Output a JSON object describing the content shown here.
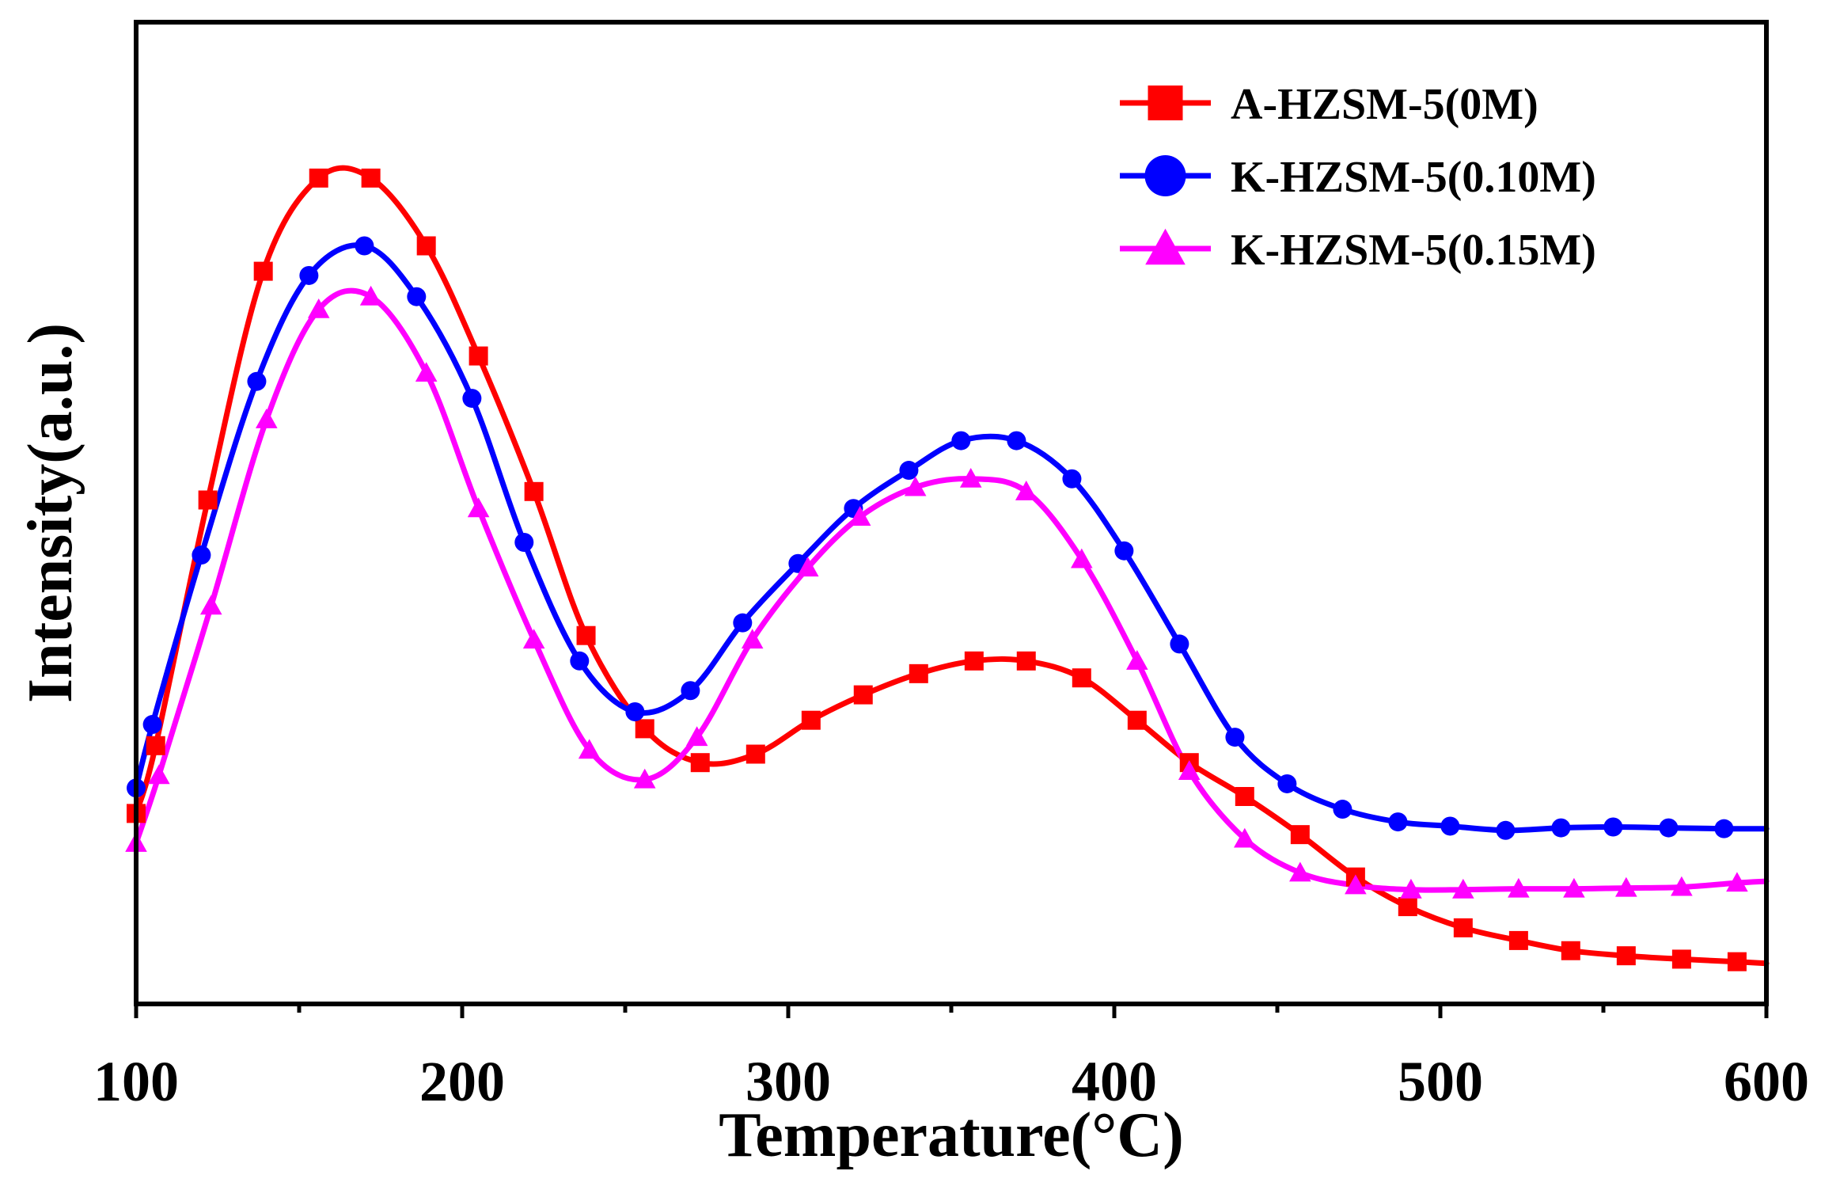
{
  "chart_data": {
    "type": "line",
    "title": "",
    "xlabel": "Temperature(°C)",
    "ylabel": "Intensity(a.u.)",
    "xlim": [
      100,
      600
    ],
    "ylim": [
      0,
      100
    ],
    "x_ticks": [
      "100",
      "200",
      "300",
      "400",
      "500",
      "600"
    ],
    "y_ticks_labeled": false,
    "grid": false,
    "legend_position": "top-right",
    "series": [
      {
        "name": "A-HZSM-5(0M)",
        "color": "#ff0000",
        "marker": "square",
        "points": [
          [
            100,
            18
          ],
          [
            106,
            26
          ],
          [
            122,
            55
          ],
          [
            139,
            82
          ],
          [
            156,
            93
          ],
          [
            172,
            93
          ],
          [
            189,
            85
          ],
          [
            205,
            72
          ],
          [
            222,
            56
          ],
          [
            238,
            39
          ],
          [
            256,
            28
          ],
          [
            273,
            24
          ],
          [
            290,
            25
          ],
          [
            307,
            29
          ],
          [
            323,
            32
          ],
          [
            340,
            34.5
          ],
          [
            357,
            36
          ],
          [
            373,
            36
          ],
          [
            390,
            34
          ],
          [
            407,
            29
          ],
          [
            423,
            24
          ],
          [
            440,
            20
          ],
          [
            457,
            15.5
          ],
          [
            474,
            10.5
          ],
          [
            490,
            7
          ],
          [
            507,
            4.5
          ],
          [
            524,
            3
          ],
          [
            540,
            1.8
          ],
          [
            557,
            1.2
          ],
          [
            574,
            0.8
          ],
          [
            591,
            0.5
          ],
          [
            600,
            0.3
          ]
        ],
        "marker_x": [
          100,
          106,
          122,
          139,
          156,
          172,
          189,
          205,
          222,
          238,
          256,
          273,
          290,
          307,
          323,
          340,
          357,
          373,
          390,
          407,
          423,
          440,
          457,
          474,
          490,
          507,
          524,
          540,
          557,
          574,
          591
        ]
      },
      {
        "name": "K-HZSM-5(0.10M)",
        "color": "#0000ff",
        "marker": "circle",
        "points": [
          [
            100,
            21
          ],
          [
            105,
            28.5
          ],
          [
            120,
            48.5
          ],
          [
            137,
            69
          ],
          [
            153,
            81.5
          ],
          [
            170,
            85
          ],
          [
            186,
            79
          ],
          [
            203,
            67
          ],
          [
            219,
            50
          ],
          [
            236,
            36
          ],
          [
            253,
            30
          ],
          [
            270,
            32.5
          ],
          [
            286,
            40.5
          ],
          [
            303,
            47.5
          ],
          [
            320,
            54
          ],
          [
            337,
            58.5
          ],
          [
            353,
            62
          ],
          [
            370,
            62
          ],
          [
            387,
            57.5
          ],
          [
            403,
            49
          ],
          [
            420,
            38
          ],
          [
            437,
            27
          ],
          [
            453,
            21.5
          ],
          [
            470,
            18.5
          ],
          [
            487,
            17
          ],
          [
            503,
            16.5
          ],
          [
            520,
            16
          ],
          [
            537,
            16.3
          ],
          [
            553,
            16.4
          ],
          [
            570,
            16.3
          ],
          [
            587,
            16.2
          ],
          [
            600,
            16.2
          ]
        ],
        "marker_x": [
          100,
          105,
          120,
          137,
          153,
          170,
          186,
          203,
          219,
          236,
          253,
          270,
          286,
          303,
          320,
          337,
          353,
          370,
          387,
          403,
          420,
          437,
          453,
          470,
          487,
          503,
          520,
          537,
          553,
          570,
          587
        ]
      },
      {
        "name": "K-HZSM-5(0.15M)",
        "color": "#ff00ff",
        "marker": "triangle",
        "points": [
          [
            100,
            14.5
          ],
          [
            107,
            22.5
          ],
          [
            123,
            42.5
          ],
          [
            140,
            64.5
          ],
          [
            156,
            77.5
          ],
          [
            172,
            79
          ],
          [
            189,
            70
          ],
          [
            205,
            54
          ],
          [
            222,
            38.5
          ],
          [
            239,
            25.5
          ],
          [
            256,
            22
          ],
          [
            272,
            27
          ],
          [
            289,
            38.5
          ],
          [
            306,
            47
          ],
          [
            322,
            53
          ],
          [
            339,
            56.5
          ],
          [
            356,
            57.5
          ],
          [
            373,
            56
          ],
          [
            390,
            48
          ],
          [
            407,
            36
          ],
          [
            423,
            23
          ],
          [
            440,
            15
          ],
          [
            457,
            11
          ],
          [
            474,
            9.5
          ],
          [
            491,
            9
          ],
          [
            507,
            9
          ],
          [
            524,
            9.1
          ],
          [
            541,
            9.1
          ],
          [
            557,
            9.2
          ],
          [
            574,
            9.3
          ],
          [
            591,
            9.8
          ],
          [
            600,
            10
          ]
        ],
        "marker_x": [
          100,
          107,
          123,
          140,
          156,
          172,
          189,
          205,
          222,
          239,
          256,
          272,
          289,
          306,
          322,
          339,
          356,
          373,
          390,
          407,
          423,
          440,
          457,
          474,
          491,
          507,
          524,
          541,
          557,
          574,
          591
        ]
      }
    ]
  }
}
